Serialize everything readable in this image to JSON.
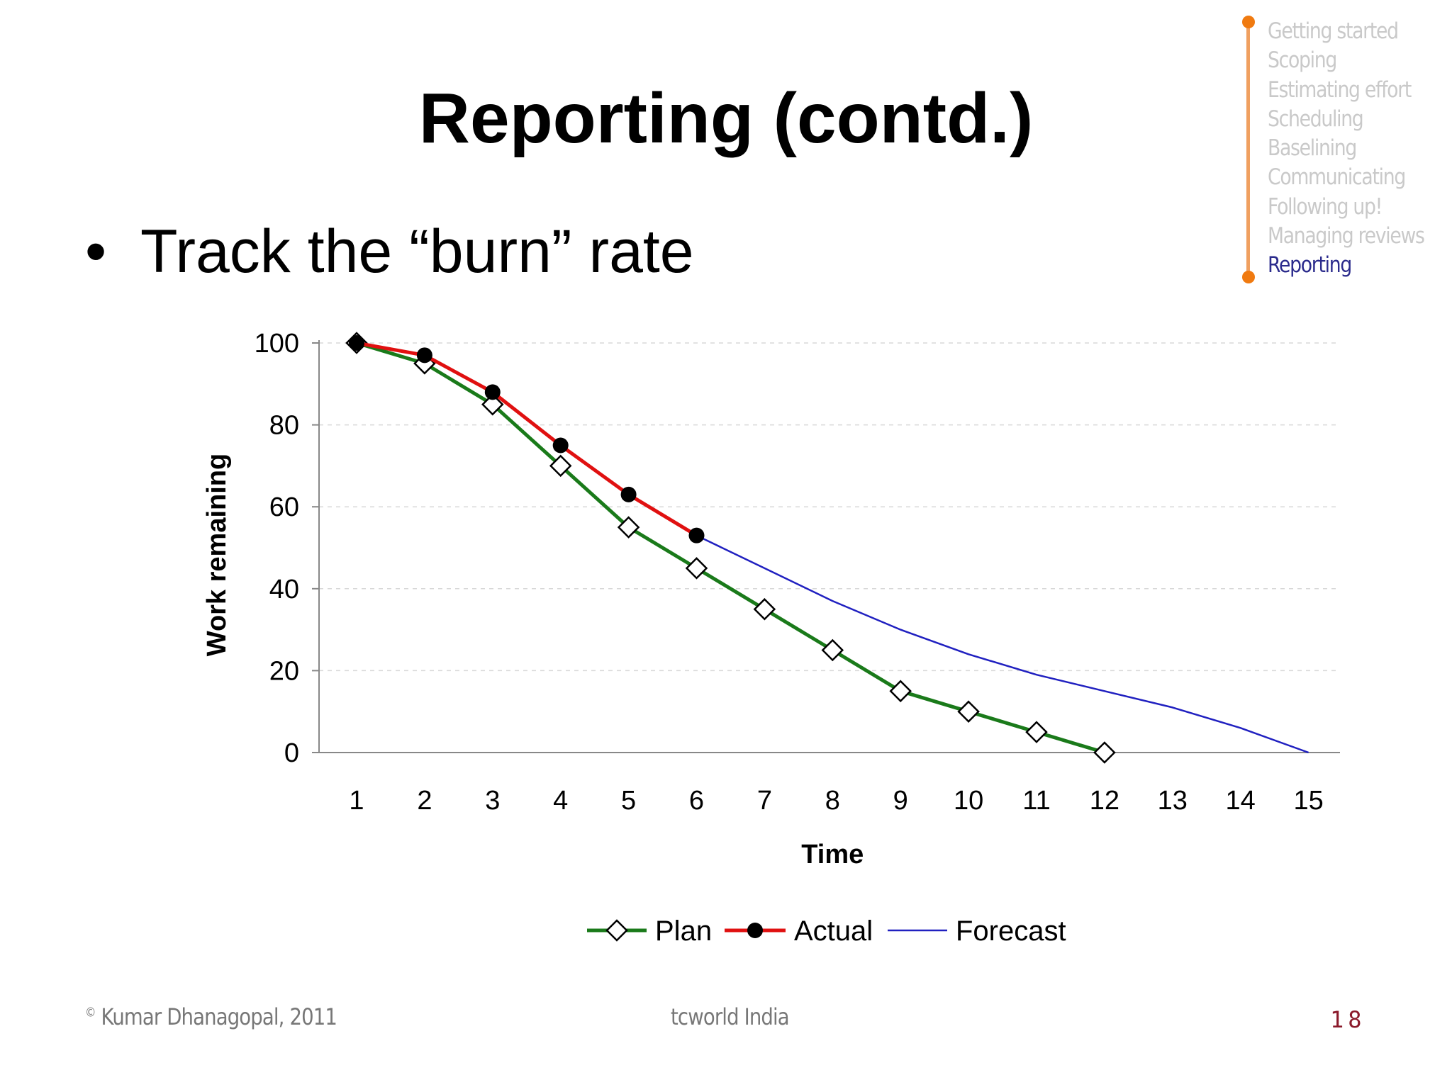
{
  "slide": {
    "title": "Reporting (contd.)",
    "bullet": "Track the “burn” rate",
    "bullet_glyph": "•"
  },
  "nav": {
    "items": [
      "Getting started",
      "Scoping",
      "Estimating effort",
      "Scheduling",
      "Baselining",
      "Communicating",
      "Following up!",
      "Managing reviews",
      "Reporting"
    ],
    "active": "Reporting",
    "rail_color": "#f07a10",
    "inactive_color": "#c9c9c9",
    "active_color": "#2b2b8c"
  },
  "chart_data": {
    "type": "line",
    "xlabel": "Time",
    "ylabel": "Work remaining",
    "categories": [
      "1",
      "2",
      "3",
      "4",
      "5",
      "6",
      "7",
      "8",
      "9",
      "10",
      "11",
      "12",
      "13",
      "14",
      "15"
    ],
    "ylim": [
      0,
      100
    ],
    "yticks": [
      0,
      20,
      40,
      60,
      80,
      100
    ],
    "grid": "horizontal dashed",
    "legend_position": "bottom",
    "series": [
      {
        "name": "Plan",
        "color": "#1a7a1a",
        "marker": "diamond-open",
        "values": [
          100,
          95,
          85,
          70,
          55,
          45,
          35,
          25,
          15,
          10,
          5,
          0,
          null,
          null,
          null
        ]
      },
      {
        "name": "Actual",
        "color": "#e01010",
        "marker": "circle-filled",
        "values": [
          100,
          97,
          88,
          75,
          63,
          53,
          null,
          null,
          null,
          null,
          null,
          null,
          null,
          null,
          null
        ]
      },
      {
        "name": "Forecast",
        "color": "#2020c0",
        "marker": "none",
        "values": [
          null,
          null,
          null,
          null,
          null,
          53,
          45,
          37,
          30,
          24,
          19,
          15,
          11,
          6,
          0
        ]
      }
    ]
  },
  "footer": {
    "copyright_symbol": "©",
    "left": "Kumar Dhanagopal, 2011",
    "center": "tcworld India",
    "page": "18"
  }
}
